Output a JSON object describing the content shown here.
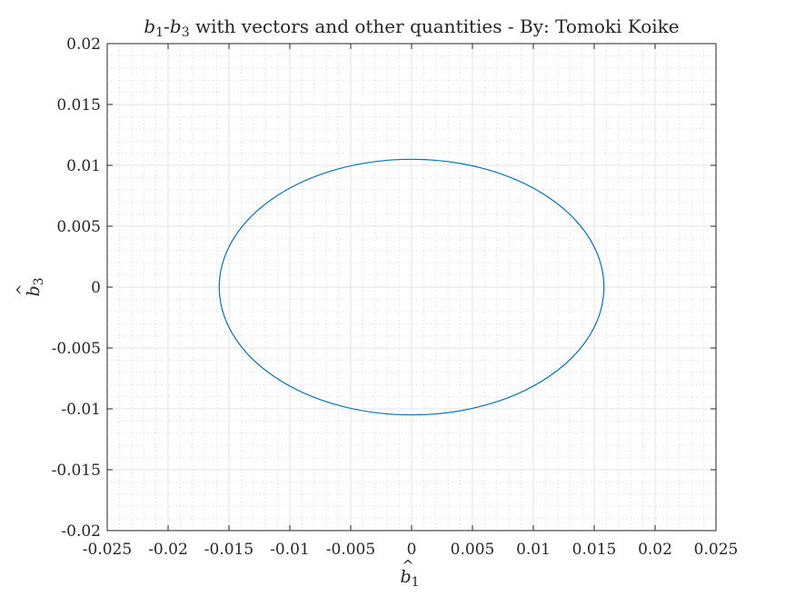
{
  "chart_data": {
    "type": "line",
    "title": {
      "sym1": "b",
      "sub1": "1",
      "sep": "-",
      "sym2": "b",
      "sub2": "3",
      "rest": " with vectors and other quantities - By:  Tomoki Koike"
    },
    "xlabel": {
      "sym": "b",
      "sub": "1",
      "hat": "^"
    },
    "ylabel": {
      "sym": "b",
      "sub": "3",
      "hat": "^"
    },
    "xlim": [
      -0.025,
      0.025
    ],
    "ylim": [
      -0.02,
      0.02
    ],
    "xticks": [
      -0.025,
      -0.02,
      -0.015,
      -0.01,
      -0.005,
      0,
      0.005,
      0.01,
      0.015,
      0.02,
      0.025
    ],
    "yticks": [
      -0.02,
      -0.015,
      -0.01,
      -0.005,
      0,
      0.005,
      0.01,
      0.015,
      0.02
    ],
    "xtick_labels": [
      "-0.025",
      "-0.02",
      "-0.015",
      "-0.01",
      "-0.005",
      "0",
      "0.005",
      "0.01",
      "0.015",
      "0.02",
      "0.025"
    ],
    "ytick_labels": [
      "-0.02",
      "-0.015",
      "-0.01",
      "-0.005",
      "0",
      "0.005",
      "0.01",
      "0.015",
      "0.02"
    ],
    "grid": true,
    "minor_grid": true,
    "series": [
      {
        "shape": "ellipse",
        "center": [
          0,
          0
        ],
        "semi_axis_x": 0.0158,
        "semi_axis_y": 0.0105,
        "color": "#0072BD"
      }
    ]
  }
}
